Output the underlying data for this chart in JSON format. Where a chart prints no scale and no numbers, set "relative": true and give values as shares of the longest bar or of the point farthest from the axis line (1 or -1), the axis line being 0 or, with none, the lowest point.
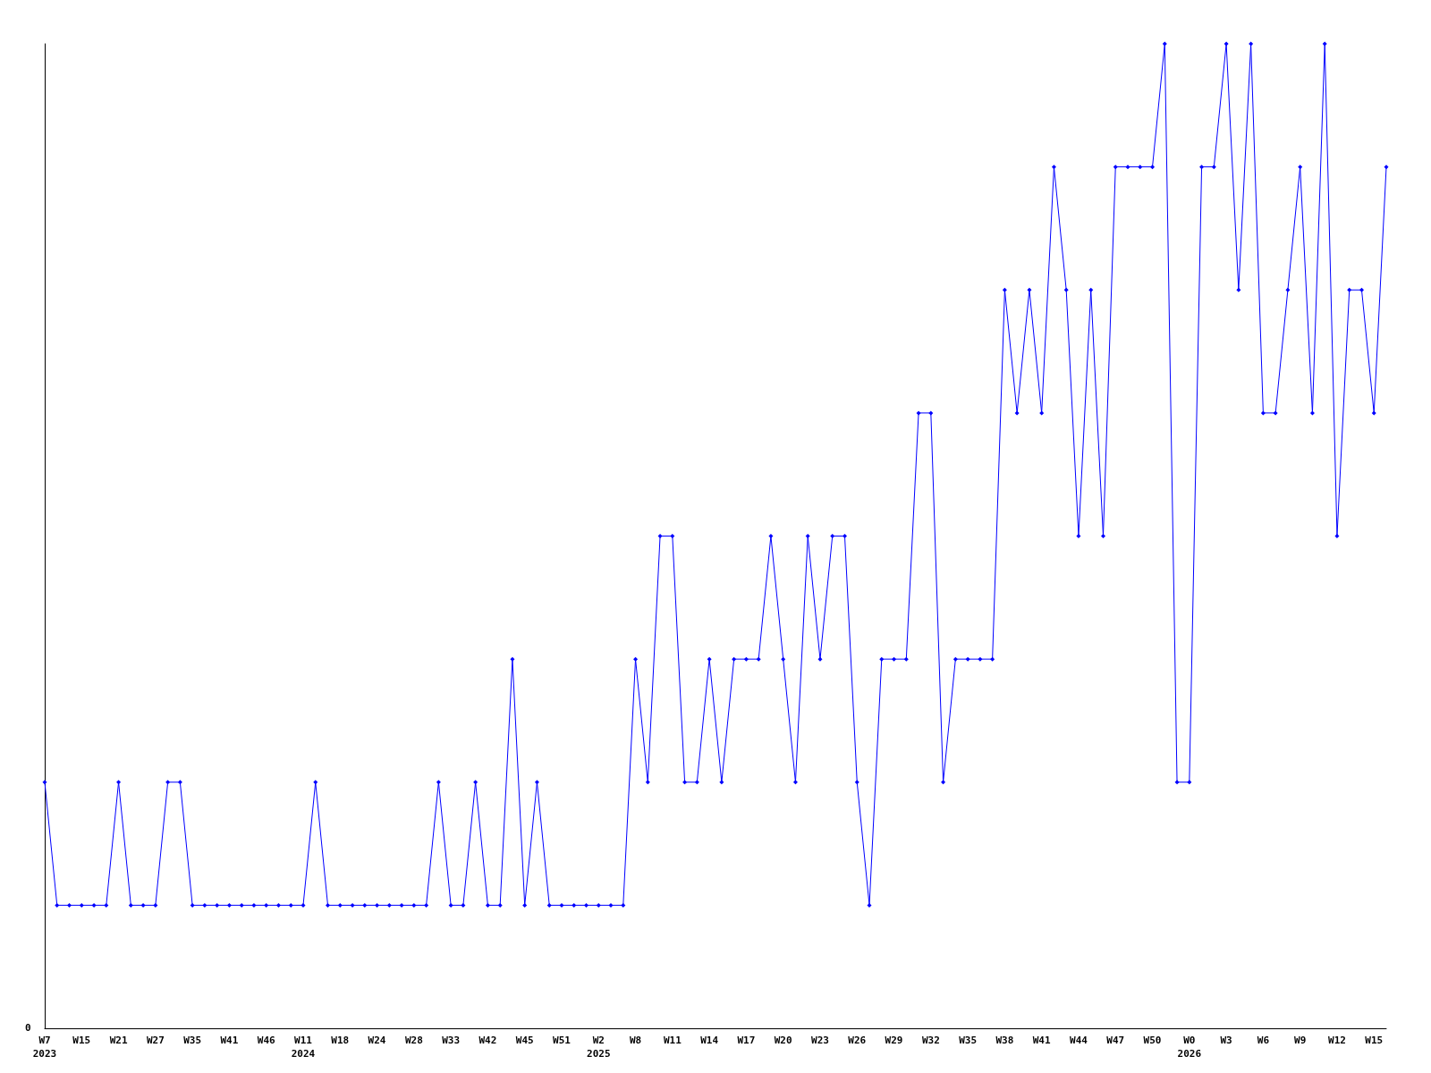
{
  "chart_data": {
    "type": "line",
    "relative": true,
    "marker": "diamond",
    "line_style": "solid",
    "grid": false,
    "annotations": [
      "0"
    ],
    "categories": [
      "W7\n2023",
      null,
      null,
      "W15",
      null,
      null,
      "W21",
      null,
      null,
      "W27",
      null,
      null,
      "W35",
      null,
      null,
      "W41",
      null,
      null,
      "W46",
      null,
      null,
      "W11\n2024",
      null,
      null,
      "W18",
      null,
      null,
      "W24",
      null,
      null,
      "W28",
      null,
      null,
      "W33",
      null,
      null,
      "W42",
      null,
      null,
      "W45",
      null,
      null,
      "W51",
      null,
      null,
      "W2\n2025",
      null,
      null,
      "W8",
      null,
      null,
      "W11",
      null,
      null,
      "W14",
      null,
      null,
      "W17",
      null,
      null,
      "W20",
      null,
      null,
      "W23",
      null,
      null,
      "W26",
      null,
      null,
      "W29",
      null,
      null,
      "W32",
      null,
      null,
      "W35",
      null,
      null,
      "W38",
      null,
      null,
      "W41",
      null,
      null,
      "W44",
      null,
      null,
      "W47",
      null,
      null,
      "W50",
      null,
      null,
      "W0\n2026",
      null,
      null,
      "W3",
      null,
      null,
      "W6",
      null,
      null,
      "W9",
      null,
      null,
      "W12",
      null,
      null,
      "W15",
      null
    ],
    "series": [
      {
        "color": "#0000ff",
        "values": [
          0.25,
          0.125,
          0.125,
          0.125,
          0.125,
          0.125,
          0.25,
          0.125,
          0.125,
          0.125,
          0.25,
          0.25,
          0.125,
          0.125,
          0.125,
          0.125,
          0.125,
          0.125,
          0.125,
          0.125,
          0.125,
          0.125,
          0.25,
          0.125,
          0.125,
          0.125,
          0.125,
          0.125,
          0.125,
          0.125,
          0.125,
          0.125,
          0.25,
          0.125,
          0.125,
          0.25,
          0.125,
          0.125,
          0.375,
          0.125,
          0.25,
          0.125,
          0.125,
          0.125,
          0.125,
          0.125,
          0.125,
          0.125,
          0.375,
          0.25,
          0.5,
          0.5,
          0.25,
          0.25,
          0.375,
          0.25,
          0.375,
          0.375,
          0.375,
          0.5,
          0.375,
          0.25,
          0.5,
          0.375,
          0.5,
          0.5,
          0.25,
          0.125,
          0.375,
          0.375,
          0.375,
          0.625,
          0.625,
          0.25,
          0.375,
          0.375,
          0.375,
          0.375,
          0.75,
          0.625,
          0.75,
          0.625,
          0.875,
          0.75,
          0.5,
          0.75,
          0.5,
          0.875,
          0.875,
          0.875,
          0.875,
          1,
          0.25,
          0.25,
          0.875,
          0.875,
          1,
          0.75,
          1,
          0.625,
          0.625,
          0.75,
          0.875,
          0.625,
          1,
          0.5,
          0.75,
          0.75,
          0.625,
          0.875
        ]
      }
    ]
  }
}
